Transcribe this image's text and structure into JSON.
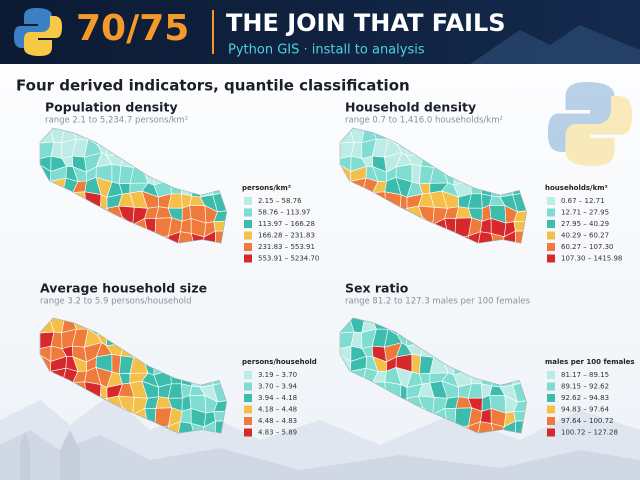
{
  "header": {
    "badge": "70/75",
    "title": "THE JOIN THAT FAILS",
    "subtitle": "Python GIS · install to analysis"
  },
  "heading": "Four derived indicators, quantile classification",
  "panels": [
    {
      "title": "Population density",
      "subtitle": "range 2.1 to 5,234.7 persons/km²",
      "legend_title": "persons/km²",
      "legend": [
        {
          "label": "2.15 – 58.76",
          "color": "#bdece6"
        },
        {
          "label": "58.76 – 113.97",
          "color": "#7fdcd0"
        },
        {
          "label": "113.97 – 166.28",
          "color": "#3bbcad"
        },
        {
          "label": "166.28 – 231.83",
          "color": "#f5c04a"
        },
        {
          "label": "231.83 – 553.91",
          "color": "#ee7b3c"
        },
        {
          "label": "553.91 – 5234.70",
          "color": "#d7282b"
        }
      ]
    },
    {
      "title": "Household density",
      "subtitle": "range 0.7 to 1,416.0 households/km²",
      "legend_title": "households/km²",
      "legend": [
        {
          "label": "0.67 – 12.71",
          "color": "#bdece6"
        },
        {
          "label": "12.71 – 27.95",
          "color": "#7fdcd0"
        },
        {
          "label": "27.95 – 40.29",
          "color": "#3bbcad"
        },
        {
          "label": "40.29 – 60.27",
          "color": "#f5c04a"
        },
        {
          "label": "60.27 – 107.30",
          "color": "#ee7b3c"
        },
        {
          "label": "107.30 – 1415.98",
          "color": "#d7282b"
        }
      ]
    },
    {
      "title": "Average household size",
      "subtitle": "range 3.2 to 5.9 persons/household",
      "legend_title": "persons/household",
      "legend": [
        {
          "label": "3.19 – 3.70",
          "color": "#bdece6"
        },
        {
          "label": "3.70 – 3.94",
          "color": "#7fdcd0"
        },
        {
          "label": "3.94 – 4.18",
          "color": "#3bbcad"
        },
        {
          "label": "4.18 – 4.48",
          "color": "#f5c04a"
        },
        {
          "label": "4.48 – 4.83",
          "color": "#ee7b3c"
        },
        {
          "label": "4.83 – 5.89",
          "color": "#d7282b"
        }
      ]
    },
    {
      "title": "Sex ratio",
      "subtitle": "range 81.2 to 127.3 males per 100 females",
      "legend_title": "males per 100 females",
      "legend": [
        {
          "label": "81.17 – 89.15",
          "color": "#bdece6"
        },
        {
          "label": "89.15 – 92.62",
          "color": "#7fdcd0"
        },
        {
          "label": "92.62 – 94.83",
          "color": "#3bbcad"
        },
        {
          "label": "94.83 – 97.64",
          "color": "#f5c04a"
        },
        {
          "label": "97.64 – 100.72",
          "color": "#ee7b3c"
        },
        {
          "label": "100.72 – 127.28",
          "color": "#d7282b"
        }
      ]
    }
  ]
}
